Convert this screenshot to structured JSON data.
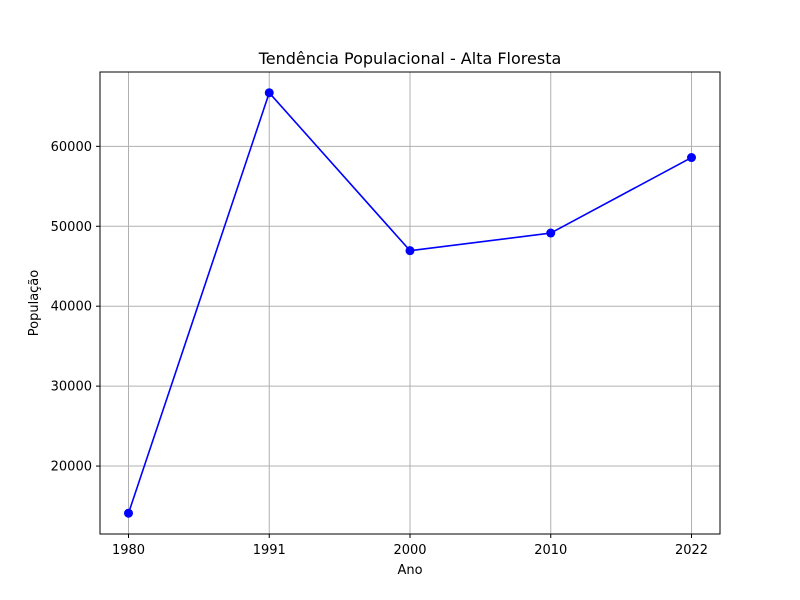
{
  "chart_data": {
    "type": "line",
    "title": "Tendência Populacional - Alta Floresta",
    "xlabel": "Ano",
    "ylabel": "População",
    "x": [
      "1980",
      "1991",
      "2000",
      "2010",
      "2022"
    ],
    "series": [
      {
        "values": [
          14100,
          66700,
          46950,
          49150,
          58600
        ],
        "color": "#0000ff",
        "marker": "circle"
      }
    ],
    "yticks": [
      20000,
      30000,
      40000,
      50000,
      60000
    ],
    "ylim": [
      11500,
      69300
    ],
    "grid": true,
    "legend": "none"
  }
}
